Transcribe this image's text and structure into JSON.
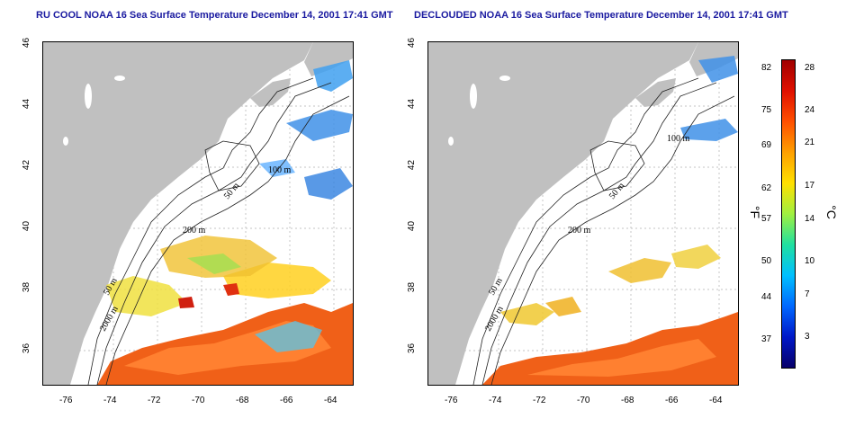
{
  "left_panel": {
    "title": "RU COOL NOAA 16 Sea Surface Temperature December 14, 2001 17:41 GMT"
  },
  "right_panel": {
    "title": "DECLOUDED NOAA 16 Sea Surface Temperature December 14, 2001 17:41 GMT"
  },
  "axes": {
    "x_ticks": [
      "-76",
      "-74",
      "-72",
      "-70",
      "-68",
      "-66",
      "-64"
    ],
    "y_ticks": [
      "36",
      "38",
      "40",
      "42",
      "44",
      "46"
    ]
  },
  "contours": {
    "labels": [
      "50 m",
      "100 m",
      "200 m",
      "50 m",
      "2000 m"
    ]
  },
  "colorbar": {
    "fahrenheit_unit": "°F",
    "celsius_unit": "°C",
    "fahrenheit_ticks": [
      "82",
      "75",
      "69",
      "62",
      "57",
      "50",
      "44",
      "37"
    ],
    "celsius_ticks": [
      "28",
      "24",
      "21",
      "17",
      "14",
      "10",
      "7",
      "3"
    ],
    "colors": [
      "#08006a",
      "#0018c8",
      "#0068ff",
      "#00c0ff",
      "#20e0a0",
      "#a0f040",
      "#ffe000",
      "#ffa000",
      "#ff5000",
      "#e01000",
      "#a00000"
    ]
  },
  "colors": {
    "land": "#c0c0c0",
    "title": "#1a1aa0",
    "warm_water": "#f06018",
    "cool_water": "#30a0f0"
  }
}
